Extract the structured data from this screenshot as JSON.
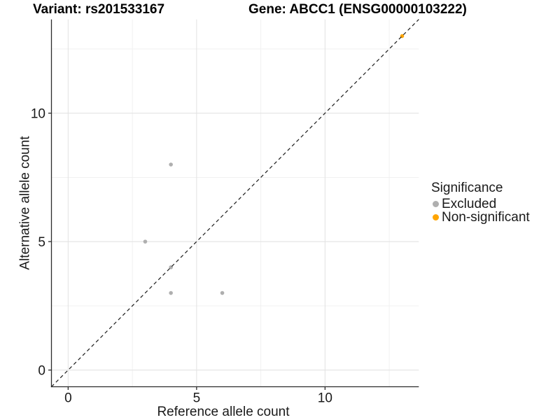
{
  "chart_data": {
    "type": "scatter",
    "title_left": "Variant: rs201533167",
    "title_right": "Gene: ABCC1 (ENSG00000103222)",
    "xlabel": "Reference allele count",
    "ylabel": "Alternative allele count",
    "xlim": [
      -0.65,
      13.65
    ],
    "ylim": [
      -0.65,
      13.65
    ],
    "x_ticks": [
      0,
      5,
      10
    ],
    "y_ticks": [
      0,
      5,
      10
    ],
    "x_minor_ticks": [
      2.5,
      7.5,
      12.5
    ],
    "y_minor_ticks": [
      2.5,
      7.5,
      12.5
    ],
    "grid": true,
    "background": "#ffffff",
    "reference_line": {
      "equation": "y = x",
      "style": "dashed",
      "color": "#1a1a1a"
    },
    "legend": {
      "title": "Significance",
      "position": "right"
    },
    "series": [
      {
        "name": "Excluded",
        "color": "#afafaf",
        "points": [
          {
            "x": 4,
            "y": 8
          },
          {
            "x": 3,
            "y": 5
          },
          {
            "x": 4,
            "y": 4
          },
          {
            "x": 4,
            "y": 3
          },
          {
            "x": 6,
            "y": 3
          }
        ]
      },
      {
        "name": "Non-significant",
        "color": "#FFA500",
        "points": [
          {
            "x": 13,
            "y": 13
          }
        ]
      }
    ],
    "colors": {
      "grid_major": "#e3e3e3",
      "grid_minor": "#efefef",
      "axis_line": "#2b2b2b",
      "text": "#1a1a1a"
    }
  }
}
